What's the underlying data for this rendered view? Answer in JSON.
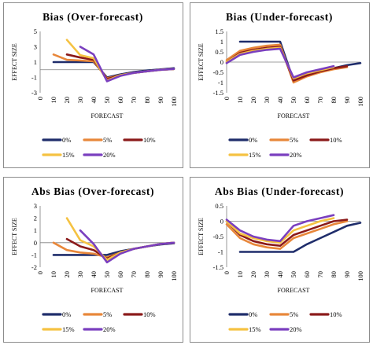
{
  "chart_data": [
    {
      "type": "line",
      "title": "Bias (Over-forecast)",
      "xlabel": "FORECAST",
      "ylabel": "EFFECT SIZE",
      "x": [
        0,
        10,
        20,
        30,
        40,
        50,
        60,
        70,
        80,
        90,
        100
      ],
      "xticks": [
        "0",
        "10",
        "20",
        "30",
        "40",
        "50",
        "60",
        "70",
        "80",
        "90",
        "100"
      ],
      "ylim": [
        -3,
        5
      ],
      "yticks": [
        -3,
        -1,
        1,
        3,
        5
      ],
      "ytick_labels": [
        "-3",
        "-1",
        "1",
        "3",
        "5"
      ],
      "grid": false,
      "legend_position": "bottom",
      "series": [
        {
          "name": "0%",
          "color": "#1f2d6b",
          "x": [
            10,
            20,
            30,
            40,
            50,
            60,
            70,
            80,
            90,
            100
          ],
          "values": [
            1.0,
            1.0,
            1.0,
            1.0,
            -1.0,
            -0.6,
            -0.3,
            -0.1,
            0.05,
            0.2
          ]
        },
        {
          "name": "5%",
          "color": "#e8873a",
          "x": [
            10,
            20,
            30,
            40,
            50,
            60,
            70,
            80,
            90,
            100
          ],
          "values": [
            2.0,
            1.3,
            1.2,
            1.1,
            -1.1,
            -0.7,
            -0.4,
            -0.2,
            0.0,
            0.1
          ]
        },
        {
          "name": "10%",
          "color": "#8b1a1a",
          "x": [
            20,
            30,
            40,
            50,
            60,
            70,
            80,
            90,
            100
          ],
          "values": [
            2.0,
            1.6,
            1.3,
            -1.2,
            -0.7,
            -0.4,
            -0.2,
            0.0,
            0.1
          ]
        },
        {
          "name": "15%",
          "color": "#f5c242",
          "x": [
            20,
            30,
            40,
            50,
            60,
            70,
            80,
            90,
            100
          ],
          "values": [
            3.9,
            1.9,
            1.5,
            -1.4,
            -0.7,
            -0.4,
            -0.2,
            0.0,
            0.1
          ]
        },
        {
          "name": "20%",
          "color": "#7a3fbf",
          "x": [
            30,
            40,
            50,
            60,
            70,
            80,
            90,
            100
          ],
          "values": [
            3.0,
            2.0,
            -1.5,
            -0.8,
            -0.4,
            -0.2,
            0.0,
            0.1
          ]
        }
      ]
    },
    {
      "type": "line",
      "title": "Bias (Under-forecast)",
      "xlabel": "FORECAST",
      "ylabel": "EFFECT SIZE",
      "x": [
        0,
        10,
        20,
        30,
        40,
        50,
        60,
        70,
        80,
        90,
        100
      ],
      "xticks": [
        "0",
        "10",
        "20",
        "30",
        "40",
        "50",
        "60",
        "70",
        "80",
        "90",
        "100"
      ],
      "ylim": [
        -1.5,
        1.5
      ],
      "yticks": [
        -1.5,
        -1,
        -0.5,
        0,
        0.5,
        1,
        1.5
      ],
      "ytick_labels": [
        "-1.5",
        "-1",
        "-0.5",
        "0",
        "0.5",
        "1",
        "1.5"
      ],
      "grid": false,
      "legend_position": "bottom",
      "series": [
        {
          "name": "0%",
          "color": "#1f2d6b",
          "x": [
            10,
            20,
            30,
            40,
            50,
            60,
            70,
            80,
            90,
            100
          ],
          "values": [
            1.0,
            1.0,
            1.0,
            1.0,
            -0.9,
            -0.65,
            -0.45,
            -0.3,
            -0.15,
            -0.05
          ]
        },
        {
          "name": "5%",
          "color": "#e8873a",
          "x": [
            0,
            10,
            20,
            30,
            40,
            50,
            60,
            70,
            80,
            90
          ],
          "values": [
            0.1,
            0.55,
            0.7,
            0.8,
            0.85,
            -1.0,
            -0.7,
            -0.5,
            -0.35,
            -0.25
          ]
        },
        {
          "name": "10%",
          "color": "#8b1a1a",
          "x": [
            0,
            10,
            20,
            30,
            40,
            50,
            60,
            70,
            80,
            90
          ],
          "values": [
            0.0,
            0.45,
            0.6,
            0.7,
            0.75,
            -0.9,
            -0.65,
            -0.45,
            -0.3,
            -0.2
          ]
        },
        {
          "name": "15%",
          "color": "#f5c242",
          "x": [
            0,
            10,
            20,
            30,
            40,
            50,
            60,
            70,
            80
          ],
          "values": [
            0.0,
            0.4,
            0.55,
            0.65,
            0.7,
            -0.8,
            -0.55,
            -0.4,
            -0.25
          ]
        },
        {
          "name": "20%",
          "color": "#7a3fbf",
          "x": [
            0,
            10,
            20,
            30,
            40,
            50,
            60,
            70,
            80
          ],
          "values": [
            -0.05,
            0.35,
            0.5,
            0.6,
            0.65,
            -0.75,
            -0.5,
            -0.35,
            -0.2
          ]
        }
      ]
    },
    {
      "type": "line",
      "title": "Abs Bias (Over-forecast)",
      "xlabel": "FORECAST",
      "ylabel": "EFFECT SIZE",
      "x": [
        0,
        10,
        20,
        30,
        40,
        50,
        60,
        70,
        80,
        90,
        100
      ],
      "xticks": [
        "0",
        "10",
        "20",
        "30",
        "40",
        "50",
        "60",
        "70",
        "80",
        "90",
        "100"
      ],
      "ylim": [
        -2,
        3
      ],
      "yticks": [
        -2,
        -1,
        0,
        1,
        2,
        3
      ],
      "ytick_labels": [
        "-2",
        "-1",
        "0",
        "1",
        "2",
        "3"
      ],
      "grid": false,
      "legend_position": "bottom",
      "series": [
        {
          "name": "0%",
          "color": "#1f2d6b",
          "x": [
            10,
            20,
            30,
            40,
            50,
            60,
            70,
            80,
            90,
            100
          ],
          "values": [
            -1.0,
            -1.0,
            -1.0,
            -1.0,
            -1.0,
            -0.7,
            -0.5,
            -0.3,
            -0.15,
            -0.05
          ]
        },
        {
          "name": "5%",
          "color": "#e8873a",
          "x": [
            10,
            20,
            30,
            40,
            50,
            60,
            70,
            80,
            90,
            100
          ],
          "values": [
            0.0,
            -0.6,
            -0.8,
            -0.9,
            -1.2,
            -0.8,
            -0.5,
            -0.3,
            -0.1,
            0.0
          ]
        },
        {
          "name": "10%",
          "color": "#8b1a1a",
          "x": [
            20,
            30,
            40,
            50,
            60,
            70,
            80,
            90,
            100
          ],
          "values": [
            0.3,
            -0.3,
            -0.6,
            -1.3,
            -0.8,
            -0.5,
            -0.3,
            -0.1,
            0.0
          ]
        },
        {
          "name": "15%",
          "color": "#f5c242",
          "x": [
            20,
            30,
            40,
            50,
            60,
            70,
            80,
            90,
            100
          ],
          "values": [
            2.0,
            0.2,
            -0.3,
            -1.4,
            -0.8,
            -0.5,
            -0.3,
            -0.1,
            0.0
          ]
        },
        {
          "name": "20%",
          "color": "#7a3fbf",
          "x": [
            30,
            40,
            50,
            60,
            70,
            80,
            90,
            100
          ],
          "values": [
            1.0,
            -0.1,
            -1.6,
            -0.9,
            -0.5,
            -0.3,
            -0.1,
            0.0
          ]
        }
      ]
    },
    {
      "type": "line",
      "title": "Abs Bias (Under-forecast)",
      "xlabel": "FORECAST",
      "ylabel": "EFFECT SIZE",
      "x": [
        0,
        10,
        20,
        30,
        40,
        50,
        60,
        70,
        80,
        90,
        100
      ],
      "xticks": [
        "0",
        "10",
        "20",
        "30",
        "40",
        "50",
        "60",
        "70",
        "80",
        "90",
        "100"
      ],
      "ylim": [
        -1.5,
        0.5
      ],
      "yticks": [
        -1.5,
        -1,
        -0.5,
        0,
        0.5
      ],
      "ytick_labels": [
        "-1.5",
        "-1",
        "-0.5",
        "0",
        "0.5"
      ],
      "grid": false,
      "legend_position": "bottom",
      "series": [
        {
          "name": "0%",
          "color": "#1f2d6b",
          "x": [
            10,
            20,
            30,
            40,
            50,
            60,
            70,
            80,
            90,
            100
          ],
          "values": [
            -1.0,
            -1.0,
            -1.0,
            -1.0,
            -1.0,
            -0.75,
            -0.55,
            -0.35,
            -0.15,
            -0.05
          ]
        },
        {
          "name": "5%",
          "color": "#e8873a",
          "x": [
            0,
            10,
            20,
            30,
            40,
            50,
            60,
            70,
            80,
            90
          ],
          "values": [
            -0.1,
            -0.55,
            -0.75,
            -0.85,
            -0.9,
            -0.55,
            -0.4,
            -0.25,
            -0.1,
            0.0
          ]
        },
        {
          "name": "10%",
          "color": "#8b1a1a",
          "x": [
            0,
            10,
            20,
            30,
            40,
            50,
            60,
            70,
            80,
            90
          ],
          "values": [
            0.0,
            -0.45,
            -0.65,
            -0.75,
            -0.8,
            -0.45,
            -0.3,
            -0.15,
            0.0,
            0.05
          ]
        },
        {
          "name": "15%",
          "color": "#f5c242",
          "x": [
            0,
            10,
            20,
            30,
            40,
            50,
            60,
            70,
            80
          ],
          "values": [
            0.0,
            -0.4,
            -0.55,
            -0.65,
            -0.7,
            -0.3,
            -0.15,
            0.0,
            0.1
          ]
        },
        {
          "name": "20%",
          "color": "#7a3fbf",
          "x": [
            0,
            10,
            20,
            30,
            40,
            50,
            60,
            70,
            80
          ],
          "values": [
            0.05,
            -0.3,
            -0.5,
            -0.6,
            -0.65,
            -0.15,
            0.0,
            0.1,
            0.2
          ]
        }
      ]
    }
  ]
}
